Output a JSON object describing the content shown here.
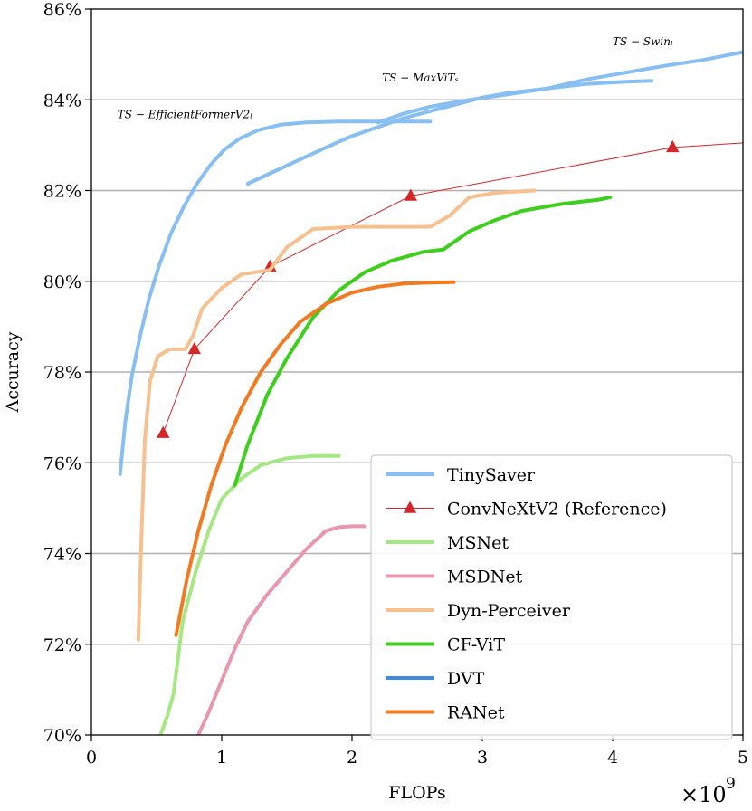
{
  "chart_data": {
    "type": "line",
    "xlabel": "FLOPs",
    "ylabel": "Accuracy",
    "x_scale_base": "×10",
    "x_scale_exponent": "9",
    "xlim": [
      0,
      5
    ],
    "ylim": [
      70,
      86
    ],
    "x_ticks": [
      0,
      1,
      2,
      3,
      4,
      5
    ],
    "x_tick_labels": [
      "0",
      "1",
      "2",
      "3",
      "4",
      "5"
    ],
    "y_ticks": [
      70,
      72,
      74,
      76,
      78,
      80,
      82,
      84,
      86
    ],
    "y_tick_labels": [
      "70%",
      "72%",
      "74%",
      "76%",
      "78%",
      "80%",
      "82%",
      "84%",
      "86%"
    ],
    "grid": "horizontal",
    "legend_position": "bottom-right",
    "annotations": [
      {
        "text": "TS − EfficientFormerV2ₗ",
        "x": 0.2,
        "y": 83.6
      },
      {
        "text": "TS − MaxViTₛ",
        "x": 2.23,
        "y": 84.4
      },
      {
        "text": "TS − Swinₗ",
        "x": 4.0,
        "y": 85.2
      }
    ],
    "series": [
      {
        "name": "TinySaver",
        "color": "#88bff2",
        "width": 4,
        "x": [
          0.22,
          0.26,
          0.31,
          0.37,
          0.44,
          0.52,
          0.61,
          0.71,
          0.81,
          0.91,
          1.02,
          1.14,
          1.28,
          1.45,
          1.65,
          1.9,
          2.2,
          2.5,
          2.6
        ],
        "y": [
          75.75,
          76.9,
          77.9,
          78.75,
          79.6,
          80.35,
          81.05,
          81.65,
          82.15,
          82.55,
          82.9,
          83.15,
          83.33,
          83.45,
          83.5,
          83.52,
          83.52,
          83.52,
          83.52
        ]
      },
      {
        "name": "TinySaver",
        "color": "#88bff2",
        "width": 4,
        "x": [
          1.2,
          1.35,
          1.5,
          1.65,
          1.8,
          2.0,
          2.2,
          2.4,
          2.6,
          2.8,
          3.0,
          3.2,
          3.5,
          3.8,
          4.1,
          4.3
        ],
        "y": [
          82.15,
          82.35,
          82.55,
          82.75,
          82.95,
          83.2,
          83.4,
          83.6,
          83.75,
          83.9,
          84.05,
          84.15,
          84.25,
          84.35,
          84.4,
          84.42
        ]
      },
      {
        "name": "TinySaver",
        "color": "#88bff2",
        "width": 4,
        "x": [
          2.2,
          2.4,
          2.6,
          2.9,
          3.2,
          3.5,
          3.8,
          4.1,
          4.4,
          4.7,
          5.0
        ],
        "y": [
          83.5,
          83.7,
          83.85,
          84.0,
          84.12,
          84.25,
          84.45,
          84.6,
          84.75,
          84.88,
          85.05
        ]
      },
      {
        "name": "ConvNeXtV2 (Reference)",
        "color": "#d62728",
        "width": 1,
        "marker": "triangle",
        "x": [
          0.55,
          0.79,
          1.37,
          2.45,
          4.46,
          5.0
        ],
        "y": [
          76.65,
          78.5,
          80.32,
          81.88,
          82.95,
          83.05
        ]
      },
      {
        "name": "MSNet",
        "color": "#a5e883",
        "width": 4,
        "x": [
          0.53,
          0.58,
          0.63,
          0.7,
          0.8,
          0.9,
          1.0,
          1.15,
          1.3,
          1.5,
          1.7,
          1.9
        ],
        "y": [
          70.0,
          70.4,
          70.9,
          72.5,
          73.6,
          74.5,
          75.2,
          75.65,
          75.95,
          76.1,
          76.15,
          76.15
        ]
      },
      {
        "name": "MSDNet",
        "color": "#e897ae",
        "width": 4,
        "x": [
          0.82,
          0.9,
          1.0,
          1.1,
          1.2,
          1.35,
          1.5,
          1.65,
          1.8,
          1.9,
          2.0,
          2.1
        ],
        "y": [
          70.0,
          70.5,
          71.2,
          71.9,
          72.5,
          73.1,
          73.6,
          74.1,
          74.5,
          74.58,
          74.6,
          74.6
        ]
      },
      {
        "name": "Dyn-Perceiver",
        "color": "#f7c08f",
        "width": 4,
        "x": [
          0.36,
          0.38,
          0.41,
          0.45,
          0.51,
          0.6,
          0.72,
          0.78,
          0.85,
          1.0,
          1.15,
          1.37,
          1.5,
          1.7,
          2.0,
          2.3,
          2.6,
          2.75,
          2.9,
          3.1,
          3.4
        ],
        "y": [
          72.1,
          74.0,
          76.5,
          77.8,
          78.35,
          78.5,
          78.5,
          78.8,
          79.4,
          79.85,
          80.15,
          80.25,
          80.75,
          81.15,
          81.2,
          81.2,
          81.2,
          81.45,
          81.85,
          81.95,
          82.0
        ]
      },
      {
        "name": "CF-ViT",
        "color": "#3dcf1b",
        "width": 4,
        "x": [
          1.1,
          1.2,
          1.35,
          1.5,
          1.7,
          1.9,
          2.1,
          2.3,
          2.55,
          2.7,
          2.9,
          3.1,
          3.3,
          3.6,
          3.9,
          3.98
        ],
        "y": [
          75.5,
          76.4,
          77.5,
          78.3,
          79.2,
          79.8,
          80.2,
          80.45,
          80.65,
          80.7,
          81.1,
          81.35,
          81.55,
          81.7,
          81.8,
          81.85
        ]
      },
      {
        "name": "DVT",
        "color": "#3a8dde",
        "width": 4,
        "x": [],
        "y": []
      },
      {
        "name": "RANet",
        "color": "#f27a20",
        "width": 4,
        "x": [
          0.65,
          0.73,
          0.82,
          0.92,
          1.03,
          1.15,
          1.3,
          1.45,
          1.6,
          1.8,
          2.0,
          2.2,
          2.4,
          2.6,
          2.78
        ],
        "y": [
          72.2,
          73.4,
          74.5,
          75.5,
          76.4,
          77.2,
          78.0,
          78.6,
          79.1,
          79.5,
          79.75,
          79.88,
          79.95,
          79.97,
          79.98
        ]
      }
    ],
    "legend": [
      {
        "label": "TinySaver",
        "color": "#88bff2",
        "style": "line"
      },
      {
        "label": "ConvNeXtV2 (Reference)",
        "color": "#d62728",
        "style": "line-triangle"
      },
      {
        "label": "MSNet",
        "color": "#a5e883",
        "style": "line"
      },
      {
        "label": "MSDNet",
        "color": "#e897ae",
        "style": "line"
      },
      {
        "label": "Dyn-Perceiver",
        "color": "#f7c08f",
        "style": "line"
      },
      {
        "label": "CF-ViT",
        "color": "#3dcf1b",
        "style": "line"
      },
      {
        "label": "DVT",
        "color": "#3a8dde",
        "style": "line"
      },
      {
        "label": "RANet",
        "color": "#f27a20",
        "style": "line"
      }
    ]
  }
}
